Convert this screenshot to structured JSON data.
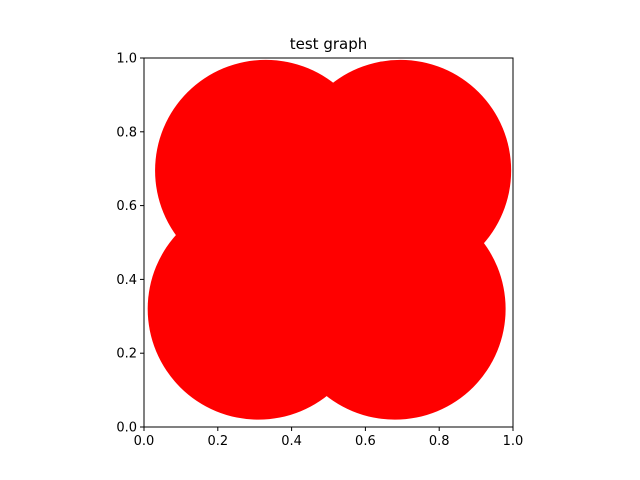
{
  "chart_data": {
    "type": "scatter",
    "title": "test graph",
    "xlabel": "",
    "ylabel": "",
    "xlim": [
      0.0,
      1.0
    ],
    "ylim": [
      0.0,
      1.0
    ],
    "grid": false,
    "xticks": [
      "0.0",
      "0.2",
      "0.4",
      "0.6",
      "0.8",
      "1.0"
    ],
    "yticks": [
      "0.0",
      "0.2",
      "0.4",
      "0.6",
      "0.8",
      "1.0"
    ],
    "circles": [
      {
        "x": 0.33,
        "y": 0.695,
        "r": 0.3,
        "color": "#ff0000"
      },
      {
        "x": 0.695,
        "y": 0.695,
        "r": 0.3,
        "color": "#ff0000"
      },
      {
        "x": 0.31,
        "y": 0.32,
        "r": 0.3,
        "color": "#ff0000"
      },
      {
        "x": 0.68,
        "y": 0.32,
        "r": 0.3,
        "color": "#ff0000"
      }
    ]
  }
}
